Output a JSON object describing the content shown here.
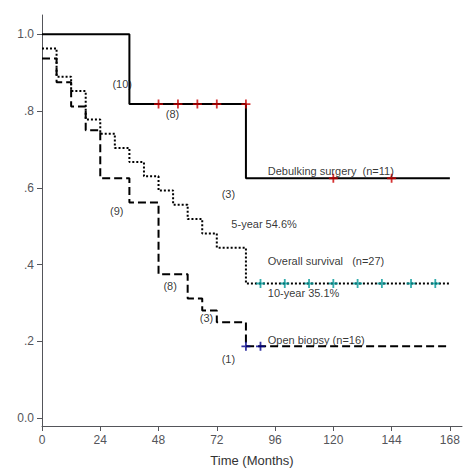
{
  "chart_data": {
    "type": "line",
    "xlabel": "Time (Months)",
    "xlim": [
      0,
      173
    ],
    "ylim": [
      -0.02,
      1.05
    ],
    "xticks": [
      0,
      24,
      48,
      72,
      96,
      120,
      144,
      168
    ],
    "yticks": [
      {
        "value": 0.0,
        "label": "0.0"
      },
      {
        "value": 0.2,
        "label": ".2"
      },
      {
        "value": 0.4,
        "label": ".4"
      },
      {
        "value": 0.6,
        "label": ".6"
      },
      {
        "value": 0.8,
        "label": ".8"
      },
      {
        "value": 1.0,
        "label": "1.0"
      }
    ],
    "grid": false,
    "series": [
      {
        "type": "line",
        "color": "#000000",
        "line_style": "solid",
        "x": [
          0,
          0,
          36,
          36,
          48,
          48,
          84,
          84,
          168
        ],
        "values": [
          1.0,
          1.0,
          1.0,
          0.818,
          0.818,
          0.818,
          0.818,
          0.625,
          0.625
        ]
      },
      {
        "type": "scatter",
        "color": "#CC0000",
        "marker": "plus",
        "x": [
          48,
          56,
          64,
          72,
          84,
          120,
          144
        ],
        "values": [
          0.818,
          0.818,
          0.818,
          0.818,
          0.818,
          0.625,
          0.625
        ]
      },
      {
        "type": "line",
        "color": "#000000",
        "line_style": "dotted",
        "x": [
          0,
          6,
          6,
          12,
          12,
          18,
          18,
          24,
          24,
          30,
          30,
          36,
          36,
          42,
          42,
          48,
          48,
          54,
          54,
          60,
          60,
          66,
          66,
          72,
          72,
          84,
          84,
          168
        ],
        "values": [
          0.963,
          0.963,
          0.889,
          0.889,
          0.852,
          0.852,
          0.778,
          0.778,
          0.741,
          0.741,
          0.704,
          0.704,
          0.667,
          0.667,
          0.63,
          0.63,
          0.593,
          0.593,
          0.556,
          0.556,
          0.519,
          0.519,
          0.481,
          0.481,
          0.444,
          0.444,
          0.351,
          0.351
        ]
      },
      {
        "type": "scatter",
        "color": "#009999",
        "marker": "plus",
        "x": [
          90,
          100,
          110,
          120,
          130,
          140,
          152,
          162
        ],
        "values": [
          0.351,
          0.351,
          0.351,
          0.351,
          0.351,
          0.351,
          0.351,
          0.351
        ]
      },
      {
        "type": "line",
        "color": "#000000",
        "line_style": "dashed",
        "x": [
          0,
          6,
          6,
          12,
          12,
          18,
          18,
          24,
          24,
          36,
          36,
          48,
          48,
          60,
          60,
          66,
          66,
          72,
          72,
          84,
          84,
          168
        ],
        "values": [
          0.937,
          0.937,
          0.875,
          0.875,
          0.812,
          0.812,
          0.75,
          0.75,
          0.625,
          0.625,
          0.562,
          0.562,
          0.375,
          0.375,
          0.312,
          0.312,
          0.281,
          0.281,
          0.25,
          0.25,
          0.1875,
          0.1875
        ]
      },
      {
        "type": "scatter",
        "color": "#00008B",
        "marker": "plus",
        "x": [
          84,
          90
        ],
        "values": [
          0.1875,
          0.1875
        ]
      }
    ],
    "annotations": [
      {
        "x": 29,
        "y": 0.87,
        "text": "(10)"
      },
      {
        "x": 51,
        "y": 0.793,
        "text": "(8)"
      },
      {
        "x": 74,
        "y": 0.585,
        "text": "(3)"
      },
      {
        "x": 28,
        "y": 0.54,
        "text": "(9)"
      },
      {
        "x": 50,
        "y": 0.345,
        "text": "(8)"
      },
      {
        "x": 65,
        "y": 0.26,
        "text": "(3)"
      },
      {
        "x": 74,
        "y": 0.155,
        "text": "(1)"
      },
      {
        "x": 93,
        "y": 0.645,
        "text": "Debulking surgery  (n=11)"
      },
      {
        "x": 78,
        "y": 0.505,
        "text": "5-year 54.6%"
      },
      {
        "x": 93,
        "y": 0.41,
        "text": "Overall survival   (n=27)"
      },
      {
        "x": 93,
        "y": 0.325,
        "text": "10-year 35.1%"
      },
      {
        "x": 93,
        "y": 0.205,
        "text": "Open biopsy (n=16)"
      }
    ]
  }
}
